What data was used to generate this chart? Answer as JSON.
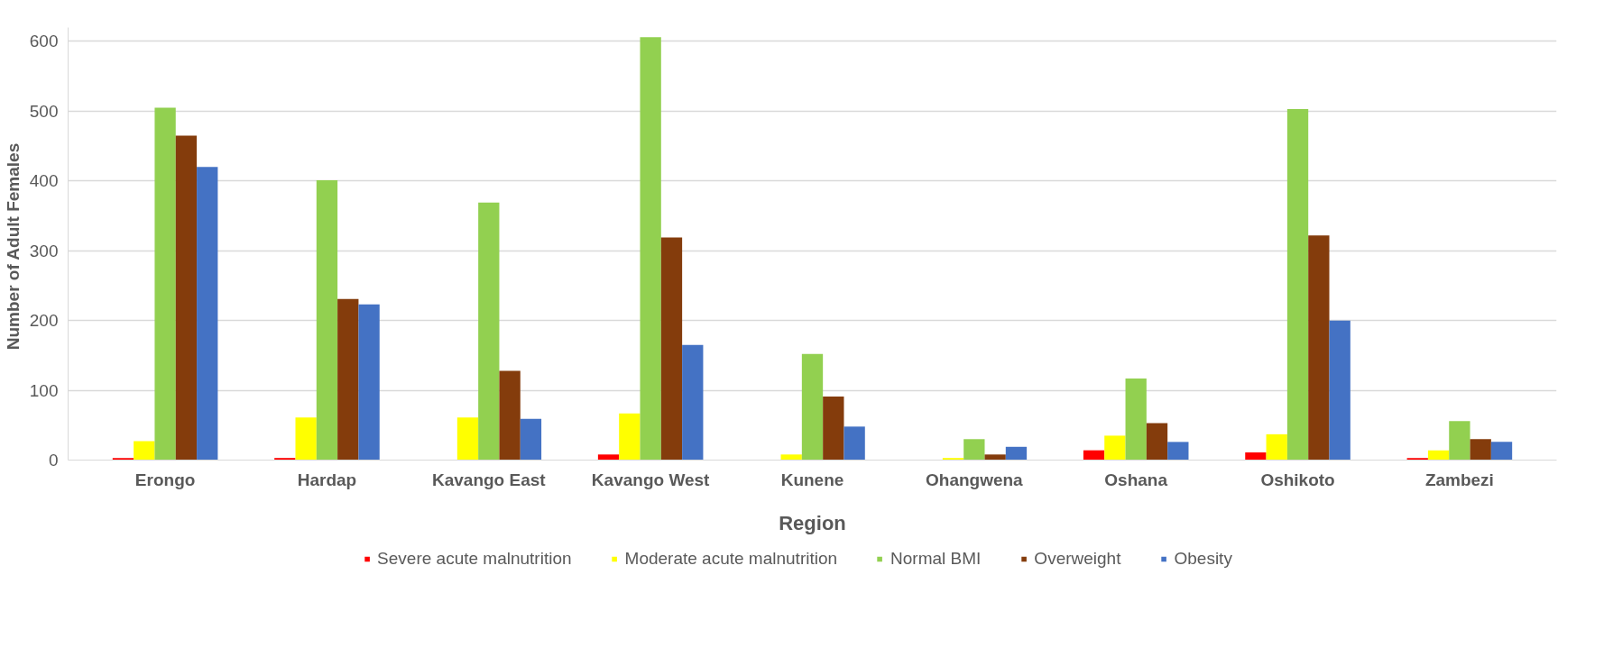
{
  "chart_data": {
    "type": "bar",
    "xlabel": "Region",
    "ylabel": "Number of Adult  Females",
    "categories": [
      "Erongo",
      "Hardap",
      "Kavango East",
      "Kavango West",
      "Kunene",
      "Ohangwena",
      "Oshana",
      "Oshikoto",
      "Zambezi"
    ],
    "series": [
      {
        "name": "Severe acute malnutrition",
        "color": "#ff0000",
        "values": [
          3,
          3,
          0,
          8,
          0,
          0,
          14,
          11,
          3
        ]
      },
      {
        "name": "Moderate acute malnutrition",
        "color": "#ffff00",
        "values": [
          27,
          61,
          61,
          67,
          8,
          3,
          35,
          37,
          14
        ]
      },
      {
        "name": "Normal BMI",
        "color": "#92d050",
        "values": [
          505,
          401,
          369,
          606,
          152,
          30,
          117,
          503,
          56
        ]
      },
      {
        "name": "Overweight",
        "color": "#843c0c",
        "values": [
          465,
          231,
          128,
          319,
          91,
          8,
          53,
          322,
          30
        ]
      },
      {
        "name": "Obesity",
        "color": "#4472c4",
        "values": [
          420,
          223,
          59,
          165,
          48,
          19,
          26,
          200,
          26
        ]
      }
    ],
    "ylim": [
      0,
      620
    ],
    "yticks": [
      0,
      100,
      200,
      300,
      400,
      500,
      600
    ],
    "grid": "y",
    "legend": "bottom"
  }
}
